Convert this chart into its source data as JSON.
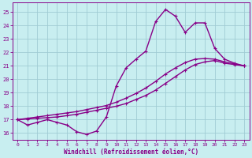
{
  "xlabel": "Windchill (Refroidissement éolien,°C)",
  "xlim": [
    -0.5,
    23.5
  ],
  "ylim": [
    15.5,
    25.7
  ],
  "yticks": [
    16,
    17,
    18,
    19,
    20,
    21,
    22,
    23,
    24,
    25
  ],
  "xticks": [
    0,
    1,
    2,
    3,
    4,
    5,
    6,
    7,
    8,
    9,
    10,
    11,
    12,
    13,
    14,
    15,
    16,
    17,
    18,
    19,
    20,
    21,
    22,
    23
  ],
  "bg_color": "#c8eef0",
  "grid_color": "#a0ccd4",
  "line_color": "#880088",
  "curve1_x": [
    0,
    1,
    2,
    3,
    4,
    5,
    6,
    7,
    8,
    9,
    10,
    11,
    12,
    13,
    14,
    15,
    16,
    17,
    18,
    19,
    20,
    21,
    22,
    23
  ],
  "curve1_y": [
    17.0,
    16.6,
    16.8,
    17.0,
    16.8,
    16.6,
    16.1,
    15.9,
    16.15,
    17.2,
    19.5,
    20.85,
    21.5,
    22.1,
    24.3,
    25.2,
    24.7,
    23.5,
    24.2,
    24.2,
    22.3,
    21.5,
    21.2,
    21.0
  ],
  "curve2_x": [
    0,
    1,
    2,
    3,
    4,
    5,
    6,
    7,
    8,
    9,
    10,
    11,
    12,
    13,
    14,
    15,
    16,
    17,
    18,
    19,
    20,
    21,
    22,
    23
  ],
  "curve2_y": [
    17.0,
    17.05,
    17.1,
    17.15,
    17.2,
    17.3,
    17.4,
    17.55,
    17.7,
    17.85,
    18.0,
    18.2,
    18.5,
    18.8,
    19.2,
    19.7,
    20.2,
    20.7,
    21.1,
    21.3,
    21.4,
    21.2,
    21.1,
    21.0
  ],
  "curve3_x": [
    0,
    1,
    2,
    3,
    4,
    5,
    6,
    7,
    8,
    9,
    10,
    11,
    12,
    13,
    14,
    15,
    16,
    17,
    18,
    19,
    20,
    21,
    22,
    23
  ],
  "curve3_y": [
    17.0,
    17.1,
    17.2,
    17.3,
    17.4,
    17.5,
    17.6,
    17.75,
    17.9,
    18.05,
    18.3,
    18.6,
    18.95,
    19.35,
    19.85,
    20.4,
    20.85,
    21.25,
    21.5,
    21.55,
    21.5,
    21.3,
    21.15,
    21.0
  ],
  "linewidth": 1.0,
  "markersize": 3.0
}
